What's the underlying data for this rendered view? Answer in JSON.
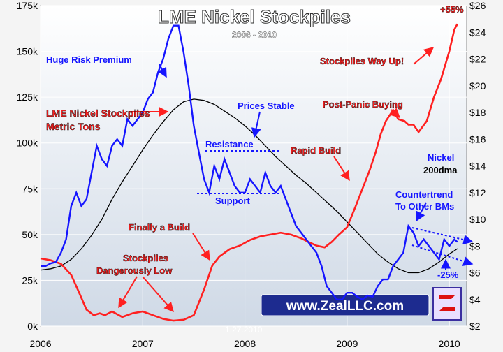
{
  "chart_data": {
    "type": "line",
    "title": "LME Nickel Stockpiles",
    "subtitle": "2006 - 2010",
    "date_stamp": "1.27.2010",
    "brand": "www.ZealLLC.com",
    "grid": true,
    "x_ticks": [
      "2006",
      "2007",
      "2008",
      "2009",
      "2010"
    ],
    "xlim": [
      2006.0,
      2010.17
    ],
    "y_left": {
      "ticks": [
        "0k",
        "25k",
        "50k",
        "75k",
        "100k",
        "125k",
        "150k",
        "175k"
      ],
      "lim": [
        0,
        175000
      ]
    },
    "y_right": {
      "ticks": [
        "$2",
        "$4",
        "$6",
        "$8",
        "$10",
        "$12",
        "$14",
        "$16",
        "$18",
        "$20",
        "$22",
        "$24",
        "$26"
      ],
      "lim": [
        2,
        26
      ]
    },
    "series": [
      {
        "name": "LME Nickel Stockpiles Metric Tons",
        "axis": "left",
        "color": "#ff2020",
        "x": [
          2006.0,
          2006.1,
          2006.2,
          2006.3,
          2006.38,
          2006.45,
          2006.52,
          2006.58,
          2006.63,
          2006.7,
          2006.8,
          2006.9,
          2007.0,
          2007.1,
          2007.2,
          2007.3,
          2007.4,
          2007.5,
          2007.6,
          2007.68,
          2007.75,
          2007.85,
          2007.95,
          2008.05,
          2008.15,
          2008.25,
          2008.35,
          2008.45,
          2008.55,
          2008.62,
          2008.7,
          2008.78,
          2008.85,
          2008.92,
          2009.0,
          2009.08,
          2009.15,
          2009.22,
          2009.28,
          2009.33,
          2009.38,
          2009.45,
          2009.5,
          2009.56,
          2009.6,
          2009.65,
          2009.7,
          2009.78,
          2009.85,
          2009.92,
          2010.0,
          2010.05,
          2010.08
        ],
        "values": [
          37000,
          36000,
          34000,
          28000,
          18000,
          9000,
          6000,
          7000,
          6000,
          8000,
          5000,
          7000,
          8000,
          6000,
          4000,
          3000,
          3500,
          6000,
          20000,
          33000,
          38000,
          42000,
          44000,
          47000,
          49000,
          50000,
          51000,
          50000,
          48000,
          46000,
          44000,
          43000,
          46000,
          50000,
          54000,
          65000,
          75000,
          85000,
          95000,
          105000,
          112000,
          118000,
          113000,
          112000,
          110000,
          110000,
          106000,
          112000,
          125000,
          135000,
          150000,
          162000,
          165000
        ]
      },
      {
        "name": "Nickel",
        "axis": "right",
        "color": "#1515ff",
        "x": [
          2006.0,
          2006.05,
          2006.1,
          2006.15,
          2006.2,
          2006.25,
          2006.3,
          2006.35,
          2006.4,
          2006.45,
          2006.5,
          2006.55,
          2006.6,
          2006.65,
          2006.7,
          2006.75,
          2006.8,
          2006.85,
          2006.9,
          2006.95,
          2007.0,
          2007.05,
          2007.1,
          2007.15,
          2007.2,
          2007.25,
          2007.3,
          2007.35,
          2007.4,
          2007.45,
          2007.5,
          2007.55,
          2007.6,
          2007.65,
          2007.7,
          2007.75,
          2007.8,
          2007.85,
          2007.9,
          2007.95,
          2008.0,
          2008.05,
          2008.1,
          2008.15,
          2008.2,
          2008.25,
          2008.3,
          2008.35,
          2008.4,
          2008.45,
          2008.5,
          2008.55,
          2008.6,
          2008.65,
          2008.7,
          2008.75,
          2008.8,
          2008.85,
          2008.9,
          2008.95,
          2009.0,
          2009.05,
          2009.1,
          2009.15,
          2009.2,
          2009.25,
          2009.3,
          2009.35,
          2009.4,
          2009.45,
          2009.5,
          2009.55,
          2009.6,
          2009.65,
          2009.7,
          2009.75,
          2009.8,
          2009.85,
          2009.9,
          2009.95,
          2010.0,
          2010.05,
          2010.08
        ],
        "values": [
          6.5,
          6.5,
          6.7,
          6.8,
          7.5,
          8.5,
          11.0,
          12.0,
          11.0,
          11.5,
          13.5,
          15.5,
          14.5,
          14.0,
          15.5,
          16.0,
          15.5,
          17.5,
          17.0,
          17.5,
          18.0,
          19.0,
          19.5,
          21.0,
          22.0,
          23.5,
          24.5,
          24.5,
          22.5,
          20.0,
          17.0,
          15.0,
          13.0,
          12.0,
          14.0,
          13.0,
          14.5,
          13.5,
          12.5,
          12.0,
          12.0,
          13.0,
          12.5,
          12.0,
          13.5,
          12.5,
          12.0,
          12.5,
          11.5,
          10.5,
          9.5,
          9.0,
          8.5,
          8.0,
          7.5,
          6.5,
          5.0,
          4.5,
          4.0,
          4.0,
          4.5,
          4.5,
          4.2,
          4.0,
          4.3,
          4.2,
          5.0,
          5.5,
          5.5,
          6.5,
          7.0,
          7.5,
          9.5,
          9.0,
          8.0,
          8.5,
          8.0,
          7.5,
          7.0,
          8.5,
          8.0,
          8.5,
          8.3
        ]
      },
      {
        "name": "200dma",
        "axis": "right",
        "color": "#000000",
        "x": [
          2006.0,
          2006.1,
          2006.2,
          2006.3,
          2006.4,
          2006.5,
          2006.6,
          2006.7,
          2006.8,
          2006.9,
          2007.0,
          2007.1,
          2007.2,
          2007.3,
          2007.4,
          2007.5,
          2007.6,
          2007.7,
          2007.8,
          2007.9,
          2008.0,
          2008.1,
          2008.2,
          2008.3,
          2008.4,
          2008.5,
          2008.6,
          2008.7,
          2008.8,
          2008.9,
          2009.0,
          2009.1,
          2009.2,
          2009.3,
          2009.4,
          2009.5,
          2009.6,
          2009.7,
          2009.8,
          2009.9,
          2010.0,
          2010.08
        ],
        "values": [
          6.2,
          6.3,
          6.5,
          7.0,
          7.8,
          8.8,
          10.0,
          11.5,
          12.8,
          14.0,
          15.2,
          16.3,
          17.3,
          18.2,
          18.8,
          19.0,
          18.9,
          18.6,
          18.1,
          17.6,
          17.0,
          16.3,
          15.5,
          14.7,
          14.0,
          13.3,
          12.7,
          12.0,
          11.3,
          10.6,
          9.8,
          9.0,
          8.2,
          7.4,
          6.8,
          6.3,
          6.0,
          6.0,
          6.3,
          6.8,
          7.4,
          7.8
        ]
      }
    ],
    "annotations": {
      "huge_risk_premium": "Huge Risk Premium",
      "stockpiles_label_1": "LME Nickel Stockpiles",
      "stockpiles_label_2": "Metric Tons",
      "prices_stable": "Prices Stable",
      "resistance": "Resistance",
      "support": "Support",
      "rapid_build": "Rapid Build",
      "post_panic": "Post-Panic Buying",
      "way_up": "Stockpiles Way Up!",
      "plus55": "+55%",
      "finally_build": "Finally a Build",
      "dangerously_1": "Stockpiles",
      "dangerously_2": "Dangerously Low",
      "nickel": "Nickel",
      "dma": "200dma",
      "countertrend_1": "Countertrend",
      "countertrend_2": "To Other BMs",
      "minus25": "-25%"
    }
  }
}
